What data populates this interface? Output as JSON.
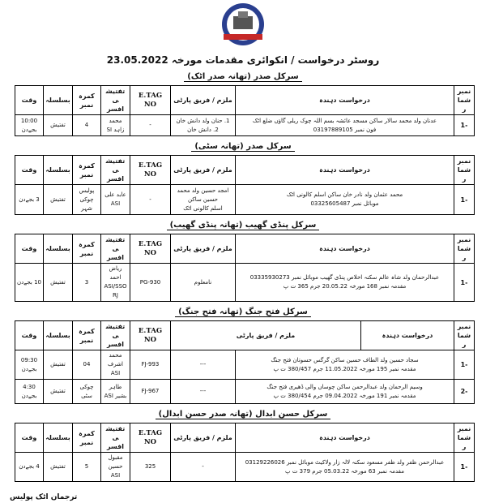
{
  "title": "روسٹر درخواست / انکوائری مقدمات مورخہ 23.05.2022",
  "headers": {
    "serial": "نمبر شمار",
    "applicant": "درخواست دہندہ",
    "accused": "ملزم / فریق پارٹی",
    "etag": "E.TAG NO",
    "officer": "تفتیشی افسر",
    "room": "کمرہ نمبر",
    "purpose": "بسلسلہ",
    "time": "وقت"
  },
  "sections": [
    {
      "heading": "سرکل صدر (تھانہ صدر اٹک)",
      "rows": [
        {
          "serial": "-1",
          "applicant_1": "عدنان ولد محمد سالار ساکن مسجد عائشہ بسم اللہ چوک ریلی گاؤں ضلع اٹک",
          "applicant_2": "فون نمبر 03197889105",
          "accused_1": "1. حنان ولد دانش خان",
          "accused_2": "2. دانش خان",
          "etag": "-",
          "officer": "محمد زاہد SI",
          "room": "4",
          "purpose": "تفتیش",
          "time_1": "10:00",
          "time_2": "بجےدن"
        }
      ]
    },
    {
      "heading": "سرکل صدر (تھانہ سٹی)",
      "rows": [
        {
          "serial": "-1",
          "applicant_1": "محمد عثمان ولد نادر خان ساکن اسلم کالونی اٹک",
          "applicant_2": "موبائل نمبر 03325605487",
          "accused_1": "امجد حسین ولد محمد حسین ساکن",
          "accused_2": "اسلم کالونی اٹک",
          "etag": "-",
          "officer": "عابد علی ASI",
          "room": "پولیس چوکی شہر",
          "purpose": "تفتیش",
          "time_1": "3 بجےدن",
          "time_2": ""
        }
      ]
    },
    {
      "heading": "سرکل پنڈی گھیب (تھانہ پنڈی گھیب)",
      "rows": [
        {
          "serial": "-1",
          "applicant_1": "عبدالرحمان ولد شاہ عالم سکنہ اخلاص پنڈی گھیب موبائل نمبر 03335930273",
          "applicant_2": "مقدمہ نمبر 168 مورخہ 20.05.22 جرم 365 ت پ",
          "accused_1": "نامعلوم",
          "accused_2": "",
          "etag": "PG-930",
          "officer": "ریاض احمد ASI/SSORJ",
          "room": "3",
          "purpose": "تفتیش",
          "time_1": "10 بجےدن",
          "time_2": ""
        }
      ]
    },
    {
      "heading": "سرکل فتح جنگ (تھانہ فتح جنگ)",
      "rows": [
        {
          "serial": "-1",
          "applicant_1": "سجاد حسین ولد الطاف حسین ساکن گرگس حسوتان فتح جنگ",
          "applicant_2": "مقدمہ نمبر 195 مورخہ 11.05.2022 جرم 380/457 ت پ",
          "accused_1": "---",
          "accused_2": "",
          "etag": "FJ-993",
          "officer": "محمد اشرف ASI",
          "room": "04",
          "purpose": "تفتیش",
          "time_1": "09:30",
          "time_2": "بجےدن"
        },
        {
          "serial": "-2",
          "applicant_1": "وسیم الرحمان ولد عبدالرحمن ساکن چوساں والی ڈھیری فتح جنگ",
          "applicant_2": "مقدمہ نمبر 191 مورخہ 09.04.2022 جرم 380/454 ت پ",
          "accused_1": "---",
          "accused_2": "",
          "etag": "FJ-967",
          "officer": "طاہر بشیر ASI",
          "room": "چوکی سٹی",
          "purpose": "تفتیش",
          "time_1": "4:30",
          "time_2": "بجےدن"
        }
      ]
    },
    {
      "heading": "سرکل حسن ابدال (تھانہ صدر حسن ابدال)",
      "rows": [
        {
          "serial": "-1",
          "applicant_1": "عبدالرحمن ظفر ولد ظفر مسعود سکنہ لالہ زار ولاکیٹ موبائل نمبر 03129226026",
          "applicant_2": "مقدمہ نمبر 63 مورخہ 05.03.22 جرم 379 ت پ",
          "accused_1": "-",
          "accused_2": "",
          "etag": "325",
          "officer": "مقبول حسین ASI",
          "room": "5",
          "purpose": "تفتیش",
          "time_1": "4 بجےدن",
          "time_2": ""
        }
      ]
    }
  ],
  "footer": "ترجمان اٹک پولیس",
  "logo_text": "ATTOCK POLICE"
}
